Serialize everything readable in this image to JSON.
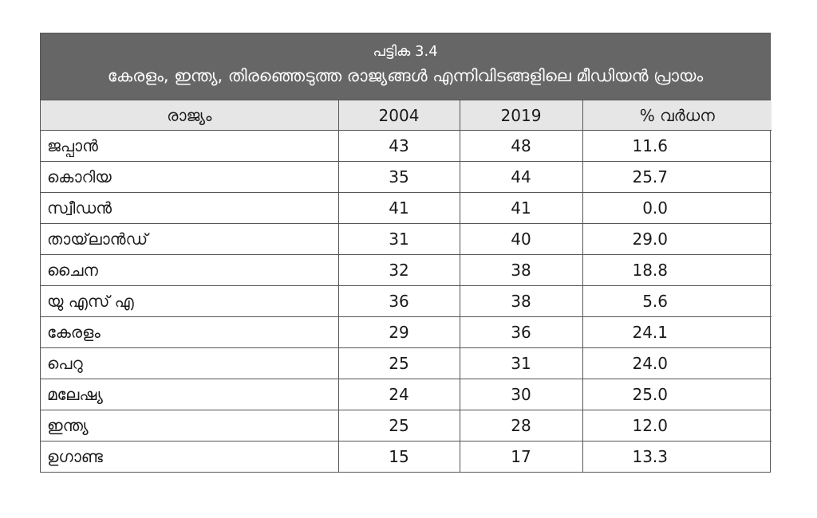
{
  "table": {
    "number": "പട്ടിക 3.4",
    "title": "കേരളം, ഇന്ത്യ, തിരഞ്ഞെടുത്ത രാജ്യങ്ങൾ എന്നിവിടങ്ങളിലെ മീഡിയൻ പ്രായം",
    "headers": [
      "രാജ്യം",
      "2004",
      "2019",
      "% വർധന"
    ],
    "rows": [
      {
        "country": "ജപ്പാൻ",
        "y2004": "43",
        "y2019": "48",
        "pct": "11.6"
      },
      {
        "country": "കൊറിയ",
        "y2004": "35",
        "y2019": "44",
        "pct": "25.7"
      },
      {
        "country": "സ്വീഡൻ",
        "y2004": "41",
        "y2019": "41",
        "pct": "0.0"
      },
      {
        "country": "തായ്‌ലാൻഡ്",
        "y2004": "31",
        "y2019": "40",
        "pct": "29.0"
      },
      {
        "country": "ചൈന",
        "y2004": "32",
        "y2019": "38",
        "pct": "18.8"
      },
      {
        "country": "യു എസ് എ",
        "y2004": "36",
        "y2019": "38",
        "pct": "5.6"
      },
      {
        "country": "കേരളം",
        "y2004": "29",
        "y2019": "36",
        "pct": "24.1"
      },
      {
        "country": "പെറു",
        "y2004": "25",
        "y2019": "31",
        "pct": "24.0"
      },
      {
        "country": "മലേഷ്യ",
        "y2004": "24",
        "y2019": "30",
        "pct": "25.0"
      },
      {
        "country": "ഇന്ത്യ",
        "y2004": "25",
        "y2019": "28",
        "pct": "12.0"
      },
      {
        "country": "ഉഗാണ്ട",
        "y2004": "15",
        "y2019": "17",
        "pct": "13.3"
      }
    ]
  },
  "colors": {
    "caption_bg": "#666666",
    "header_bg": "#e6e6e6",
    "border": "#555555"
  }
}
